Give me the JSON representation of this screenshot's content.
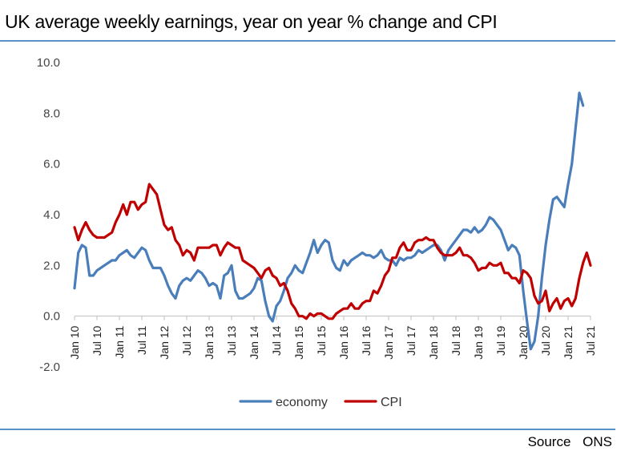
{
  "title": "UK average weekly earnings, year on year % change and CPI",
  "source": "Source  ONS",
  "chart_data": {
    "type": "line",
    "title": "UK average weekly earnings, year on year % change and CPI",
    "ylim": [
      -2,
      10
    ],
    "yticks": [
      "10.0",
      "8.0",
      "6.0",
      "4.0",
      "2.0",
      "0.0",
      "-2.0"
    ],
    "ytick_values": [
      10,
      8,
      6,
      4,
      2,
      0,
      -2
    ],
    "xlim": [
      0,
      138
    ],
    "xticks": [
      "Jan 10",
      "Jul 10",
      "Jan 11",
      "Jul 11",
      "Jan 12",
      "Jul 12",
      "Jan 13",
      "Jul 13",
      "Jan 14",
      "Jul 14",
      "Jan 15",
      "Jul 15",
      "Jan 16",
      "Jul 16",
      "Jan 17",
      "Jul 17",
      "Jan 18",
      "Jul 18",
      "Jan 19",
      "Jul 19",
      "Jan 20",
      "Jul 20",
      "Jan 21",
      "Jul 21"
    ],
    "xtick_index": [
      0,
      6,
      12,
      18,
      24,
      30,
      36,
      42,
      48,
      54,
      60,
      66,
      72,
      78,
      84,
      90,
      96,
      102,
      108,
      114,
      120,
      126,
      132,
      138
    ],
    "legend": "bottom-center",
    "grid": false,
    "series": [
      {
        "name": "economy",
        "color": "#4a7ebb",
        "points": [
          [
            0,
            1.1
          ],
          [
            1,
            2.5
          ],
          [
            2,
            2.8
          ],
          [
            3,
            2.7
          ],
          [
            4,
            1.6
          ],
          [
            5,
            1.6
          ],
          [
            6,
            1.8
          ],
          [
            7,
            1.9
          ],
          [
            8,
            2.0
          ],
          [
            9,
            2.1
          ],
          [
            10,
            2.2
          ],
          [
            11,
            2.2
          ],
          [
            12,
            2.4
          ],
          [
            13,
            2.5
          ],
          [
            14,
            2.6
          ],
          [
            15,
            2.4
          ],
          [
            16,
            2.3
          ],
          [
            17,
            2.5
          ],
          [
            18,
            2.7
          ],
          [
            19,
            2.6
          ],
          [
            20,
            2.2
          ],
          [
            21,
            1.9
          ],
          [
            22,
            1.9
          ],
          [
            23,
            1.9
          ],
          [
            24,
            1.6
          ],
          [
            25,
            1.2
          ],
          [
            26,
            0.9
          ],
          [
            27,
            0.7
          ],
          [
            28,
            1.2
          ],
          [
            29,
            1.4
          ],
          [
            30,
            1.5
          ],
          [
            31,
            1.4
          ],
          [
            32,
            1.6
          ],
          [
            33,
            1.8
          ],
          [
            34,
            1.7
          ],
          [
            35,
            1.5
          ],
          [
            36,
            1.2
          ],
          [
            37,
            1.3
          ],
          [
            38,
            1.2
          ],
          [
            39,
            0.7
          ],
          [
            40,
            1.6
          ],
          [
            41,
            1.7
          ],
          [
            42,
            2.0
          ],
          [
            43,
            1.0
          ],
          [
            44,
            0.7
          ],
          [
            45,
            0.7
          ],
          [
            46,
            0.8
          ],
          [
            47,
            0.9
          ],
          [
            48,
            1.1
          ],
          [
            49,
            1.5
          ],
          [
            50,
            1.4
          ],
          [
            51,
            0.6
          ],
          [
            52,
            0.0
          ],
          [
            53,
            -0.2
          ],
          [
            54,
            0.4
          ],
          [
            55,
            0.6
          ],
          [
            56,
            1.0
          ],
          [
            57,
            1.5
          ],
          [
            58,
            1.7
          ],
          [
            59,
            2.0
          ],
          [
            60,
            1.8
          ],
          [
            61,
            1.7
          ],
          [
            62,
            2.1
          ],
          [
            63,
            2.5
          ],
          [
            64,
            3.0
          ],
          [
            65,
            2.5
          ],
          [
            66,
            2.8
          ],
          [
            67,
            3.0
          ],
          [
            68,
            2.9
          ],
          [
            69,
            2.2
          ],
          [
            70,
            1.9
          ],
          [
            71,
            1.8
          ],
          [
            72,
            2.2
          ],
          [
            73,
            2.0
          ],
          [
            74,
            2.2
          ],
          [
            75,
            2.3
          ],
          [
            76,
            2.4
          ],
          [
            77,
            2.5
          ],
          [
            78,
            2.4
          ],
          [
            79,
            2.4
          ],
          [
            80,
            2.3
          ],
          [
            81,
            2.4
          ],
          [
            82,
            2.6
          ],
          [
            83,
            2.3
          ],
          [
            84,
            2.2
          ],
          [
            85,
            2.2
          ],
          [
            86,
            2.0
          ],
          [
            87,
            2.3
          ],
          [
            88,
            2.2
          ],
          [
            89,
            2.3
          ],
          [
            90,
            2.3
          ],
          [
            91,
            2.4
          ],
          [
            92,
            2.6
          ],
          [
            93,
            2.5
          ],
          [
            94,
            2.6
          ],
          [
            95,
            2.7
          ],
          [
            96,
            2.8
          ],
          [
            97,
            2.8
          ],
          [
            98,
            2.6
          ],
          [
            99,
            2.2
          ],
          [
            100,
            2.6
          ],
          [
            101,
            2.8
          ],
          [
            102,
            3.0
          ],
          [
            103,
            3.2
          ],
          [
            104,
            3.4
          ],
          [
            105,
            3.4
          ],
          [
            106,
            3.3
          ],
          [
            107,
            3.5
          ],
          [
            108,
            3.3
          ],
          [
            109,
            3.4
          ],
          [
            110,
            3.6
          ],
          [
            111,
            3.9
          ],
          [
            112,
            3.8
          ],
          [
            113,
            3.6
          ],
          [
            114,
            3.4
          ],
          [
            115,
            3.0
          ],
          [
            116,
            2.6
          ],
          [
            117,
            2.8
          ],
          [
            118,
            2.7
          ],
          [
            119,
            2.4
          ],
          [
            120,
            1.0
          ],
          [
            121,
            -0.2
          ],
          [
            122,
            -1.3
          ],
          [
            123,
            -1.0
          ],
          [
            124,
            0.0
          ],
          [
            125,
            1.5
          ],
          [
            126,
            2.8
          ],
          [
            127,
            3.8
          ],
          [
            128,
            4.6
          ],
          [
            129,
            4.7
          ],
          [
            130,
            4.5
          ],
          [
            131,
            4.3
          ],
          [
            132,
            5.2
          ],
          [
            133,
            6.0
          ],
          [
            134,
            7.4
          ],
          [
            135,
            8.8
          ],
          [
            136,
            8.3
          ]
        ]
      },
      {
        "name": "CPI",
        "color": "#c00000",
        "points": [
          [
            0,
            3.5
          ],
          [
            1,
            3.0
          ],
          [
            2,
            3.4
          ],
          [
            3,
            3.7
          ],
          [
            4,
            3.4
          ],
          [
            5,
            3.2
          ],
          [
            6,
            3.1
          ],
          [
            7,
            3.1
          ],
          [
            8,
            3.1
          ],
          [
            9,
            3.2
          ],
          [
            10,
            3.3
          ],
          [
            11,
            3.7
          ],
          [
            12,
            4.0
          ],
          [
            13,
            4.4
          ],
          [
            14,
            4.0
          ],
          [
            15,
            4.5
          ],
          [
            16,
            4.5
          ],
          [
            17,
            4.2
          ],
          [
            18,
            4.4
          ],
          [
            19,
            4.5
          ],
          [
            20,
            5.2
          ],
          [
            21,
            5.0
          ],
          [
            22,
            4.8
          ],
          [
            23,
            4.2
          ],
          [
            24,
            3.6
          ],
          [
            25,
            3.4
          ],
          [
            26,
            3.5
          ],
          [
            27,
            3.0
          ],
          [
            28,
            2.8
          ],
          [
            29,
            2.4
          ],
          [
            30,
            2.6
          ],
          [
            31,
            2.5
          ],
          [
            32,
            2.2
          ],
          [
            33,
            2.7
          ],
          [
            34,
            2.7
          ],
          [
            35,
            2.7
          ],
          [
            36,
            2.7
          ],
          [
            37,
            2.8
          ],
          [
            38,
            2.8
          ],
          [
            39,
            2.4
          ],
          [
            40,
            2.7
          ],
          [
            41,
            2.9
          ],
          [
            42,
            2.8
          ],
          [
            43,
            2.7
          ],
          [
            44,
            2.7
          ],
          [
            45,
            2.2
          ],
          [
            46,
            2.1
          ],
          [
            47,
            2.0
          ],
          [
            48,
            1.9
          ],
          [
            49,
            1.7
          ],
          [
            50,
            1.5
          ],
          [
            51,
            1.8
          ],
          [
            52,
            1.9
          ],
          [
            53,
            1.6
          ],
          [
            54,
            1.5
          ],
          [
            55,
            1.2
          ],
          [
            56,
            1.3
          ],
          [
            57,
            1.0
          ],
          [
            58,
            0.5
          ],
          [
            59,
            0.3
          ],
          [
            60,
            0.0
          ],
          [
            61,
            0.0
          ],
          [
            62,
            -0.1
          ],
          [
            63,
            0.1
          ],
          [
            64,
            0.0
          ],
          [
            65,
            0.1
          ],
          [
            66,
            0.1
          ],
          [
            67,
            0.0
          ],
          [
            68,
            -0.1
          ],
          [
            69,
            -0.1
          ],
          [
            70,
            0.1
          ],
          [
            71,
            0.2
          ],
          [
            72,
            0.3
          ],
          [
            73,
            0.3
          ],
          [
            74,
            0.5
          ],
          [
            75,
            0.3
          ],
          [
            76,
            0.3
          ],
          [
            77,
            0.5
          ],
          [
            78,
            0.6
          ],
          [
            79,
            0.6
          ],
          [
            80,
            1.0
          ],
          [
            81,
            0.9
          ],
          [
            82,
            1.2
          ],
          [
            83,
            1.6
          ],
          [
            84,
            1.8
          ],
          [
            85,
            2.3
          ],
          [
            86,
            2.3
          ],
          [
            87,
            2.7
          ],
          [
            88,
            2.9
          ],
          [
            89,
            2.6
          ],
          [
            90,
            2.6
          ],
          [
            91,
            2.9
          ],
          [
            92,
            3.0
          ],
          [
            93,
            3.0
          ],
          [
            94,
            3.1
          ],
          [
            95,
            3.0
          ],
          [
            96,
            3.0
          ],
          [
            97,
            2.7
          ],
          [
            98,
            2.5
          ],
          [
            99,
            2.4
          ],
          [
            100,
            2.4
          ],
          [
            101,
            2.4
          ],
          [
            102,
            2.5
          ],
          [
            103,
            2.7
          ],
          [
            104,
            2.4
          ],
          [
            105,
            2.4
          ],
          [
            106,
            2.3
          ],
          [
            107,
            2.1
          ],
          [
            108,
            1.8
          ],
          [
            109,
            1.9
          ],
          [
            110,
            1.9
          ],
          [
            111,
            2.1
          ],
          [
            112,
            2.0
          ],
          [
            113,
            2.0
          ],
          [
            114,
            2.1
          ],
          [
            115,
            1.7
          ],
          [
            116,
            1.7
          ],
          [
            117,
            1.5
          ],
          [
            118,
            1.5
          ],
          [
            119,
            1.3
          ],
          [
            120,
            1.8
          ],
          [
            121,
            1.7
          ],
          [
            122,
            1.5
          ],
          [
            123,
            0.8
          ],
          [
            124,
            0.5
          ],
          [
            125,
            0.6
          ],
          [
            126,
            1.0
          ],
          [
            127,
            0.2
          ],
          [
            128,
            0.5
          ],
          [
            129,
            0.7
          ],
          [
            130,
            0.3
          ],
          [
            131,
            0.6
          ],
          [
            132,
            0.7
          ],
          [
            133,
            0.4
          ],
          [
            134,
            0.7
          ],
          [
            135,
            1.5
          ],
          [
            136,
            2.1
          ],
          [
            137,
            2.5
          ],
          [
            138,
            2.0
          ]
        ]
      }
    ]
  }
}
